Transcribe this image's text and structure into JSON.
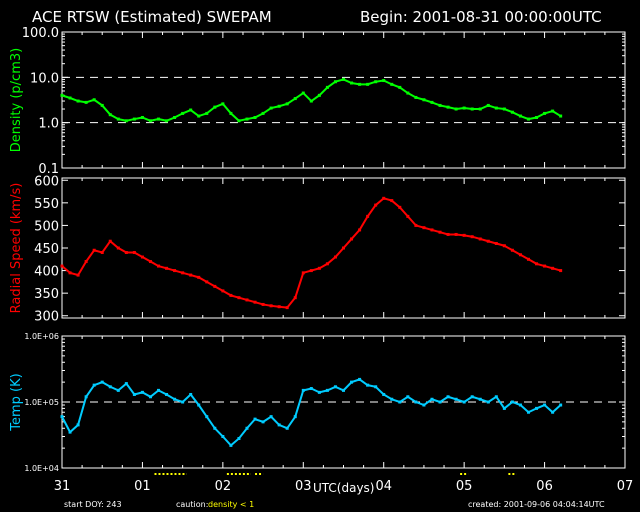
{
  "header": {
    "title": "ACE RTSW (Estimated) SWEPAM",
    "begin": "Begin: 2001-08-31 00:00:00UTC"
  },
  "footer": {
    "start_doy": "start DOY: 243",
    "caution_label": "caution:",
    "caution_value": "density < 1",
    "created": "created: 2001-09-06 04:04:14UTC",
    "xlabel": "UTC(days)"
  },
  "colors": {
    "density": "#00ff00",
    "speed": "#ff0000",
    "temp": "#00ccff",
    "caution": "#ffff00",
    "axes": "#ffffff"
  },
  "chart_data": [
    {
      "type": "scatter",
      "name": "density",
      "ylabel": "Density (p/cm3)",
      "yscale": "log",
      "ylim": [
        0.1,
        100
      ],
      "yticks": [
        0.1,
        1,
        10,
        100
      ],
      "ytick_labels": [
        "0.1",
        "1.0",
        "10.0",
        "100.0"
      ],
      "reference_lines": [
        1,
        10
      ],
      "xlim": [
        0,
        7
      ],
      "x": [
        0.0,
        0.1,
        0.2,
        0.3,
        0.4,
        0.5,
        0.6,
        0.7,
        0.8,
        0.9,
        1.0,
        1.1,
        1.2,
        1.3,
        1.4,
        1.5,
        1.6,
        1.7,
        1.8,
        1.9,
        2.0,
        2.1,
        2.2,
        2.3,
        2.4,
        2.5,
        2.6,
        2.7,
        2.8,
        2.9,
        3.0,
        3.1,
        3.2,
        3.3,
        3.4,
        3.5,
        3.6,
        3.7,
        3.8,
        3.9,
        4.0,
        4.1,
        4.2,
        4.3,
        4.4,
        4.5,
        4.6,
        4.7,
        4.8,
        4.9,
        5.0,
        5.1,
        5.2,
        5.3,
        5.4,
        5.5,
        5.6,
        5.7,
        5.8,
        5.9,
        6.0,
        6.1,
        6.2
      ],
      "y": [
        4,
        3.5,
        3,
        2.8,
        3.2,
        2.4,
        1.5,
        1.2,
        1.1,
        1.2,
        1.3,
        1.1,
        1.2,
        1.1,
        1.3,
        1.6,
        1.9,
        1.4,
        1.6,
        2.2,
        2.6,
        1.6,
        1.1,
        1.2,
        1.3,
        1.6,
        2.1,
        2.3,
        2.6,
        3.4,
        4.5,
        3,
        4,
        6,
        8,
        9,
        7.5,
        7,
        7,
        8,
        8.5,
        7,
        6,
        4.5,
        3.6,
        3.2,
        2.8,
        2.4,
        2.2,
        2,
        2.1,
        2,
        2,
        2.4,
        2.1,
        2,
        1.7,
        1.4,
        1.2,
        1.3,
        1.6,
        1.8,
        1.4
      ]
    },
    {
      "type": "scatter",
      "name": "radial_speed",
      "ylabel": "Radial Speed (km/s)",
      "ylim": [
        295,
        605
      ],
      "yticks": [
        300,
        350,
        400,
        450,
        500,
        550,
        600
      ],
      "ytick_labels": [
        "300",
        "350",
        "400",
        "450",
        "500",
        "550",
        "600"
      ],
      "xlim": [
        0,
        7
      ],
      "x": [
        0.0,
        0.1,
        0.2,
        0.3,
        0.4,
        0.5,
        0.6,
        0.7,
        0.8,
        0.9,
        1.0,
        1.1,
        1.2,
        1.3,
        1.4,
        1.5,
        1.6,
        1.7,
        1.8,
        1.9,
        2.0,
        2.1,
        2.2,
        2.3,
        2.4,
        2.5,
        2.6,
        2.7,
        2.8,
        2.9,
        3.0,
        3.1,
        3.2,
        3.3,
        3.4,
        3.5,
        3.6,
        3.7,
        3.8,
        3.9,
        4.0,
        4.1,
        4.2,
        4.3,
        4.4,
        4.5,
        4.6,
        4.7,
        4.8,
        4.9,
        5.0,
        5.1,
        5.2,
        5.3,
        5.4,
        5.5,
        5.6,
        5.7,
        5.8,
        5.9,
        6.0,
        6.1,
        6.2
      ],
      "y": [
        410,
        395,
        390,
        420,
        445,
        440,
        465,
        450,
        440,
        440,
        430,
        420,
        410,
        405,
        400,
        395,
        390,
        385,
        375,
        365,
        355,
        345,
        340,
        335,
        330,
        325,
        322,
        320,
        318,
        340,
        395,
        400,
        405,
        415,
        430,
        450,
        470,
        490,
        520,
        545,
        560,
        555,
        540,
        520,
        500,
        495,
        490,
        485,
        480,
        480,
        478,
        475,
        470,
        465,
        460,
        455,
        445,
        435,
        425,
        415,
        410,
        405,
        400
      ]
    },
    {
      "type": "scatter",
      "name": "temp",
      "ylabel": "Temp (K)",
      "yscale": "log",
      "ylim": [
        10000,
        1000000
      ],
      "yticks": [
        10000,
        100000,
        1000000
      ],
      "ytick_labels": [
        "1.0E+04",
        "1.0E+05",
        "1.0E+06"
      ],
      "reference_lines": [
        100000
      ],
      "xlim": [
        0,
        7
      ],
      "x": [
        0.0,
        0.1,
        0.2,
        0.3,
        0.4,
        0.5,
        0.6,
        0.7,
        0.8,
        0.9,
        1.0,
        1.1,
        1.2,
        1.3,
        1.4,
        1.5,
        1.6,
        1.7,
        1.8,
        1.9,
        2.0,
        2.1,
        2.2,
        2.3,
        2.4,
        2.5,
        2.6,
        2.7,
        2.8,
        2.9,
        3.0,
        3.1,
        3.2,
        3.3,
        3.4,
        3.5,
        3.6,
        3.7,
        3.8,
        3.9,
        4.0,
        4.1,
        4.2,
        4.3,
        4.4,
        4.5,
        4.6,
        4.7,
        4.8,
        4.9,
        5.0,
        5.1,
        5.2,
        5.3,
        5.4,
        5.5,
        5.6,
        5.7,
        5.8,
        5.9,
        6.0,
        6.1,
        6.2
      ],
      "y": [
        60000,
        35000,
        45000,
        120000,
        180000,
        200000,
        170000,
        150000,
        190000,
        130000,
        140000,
        120000,
        150000,
        130000,
        110000,
        100000,
        130000,
        90000,
        60000,
        40000,
        30000,
        22000,
        28000,
        40000,
        55000,
        50000,
        60000,
        45000,
        40000,
        60000,
        150000,
        160000,
        140000,
        150000,
        170000,
        150000,
        200000,
        220000,
        180000,
        170000,
        130000,
        110000,
        100000,
        120000,
        100000,
        90000,
        110000,
        100000,
        120000,
        110000,
        100000,
        120000,
        110000,
        100000,
        120000,
        80000,
        100000,
        90000,
        70000,
        80000,
        90000,
        70000,
        90000
      ]
    }
  ],
  "x_ticks": {
    "positions": [
      0,
      1,
      2,
      3,
      4,
      5,
      6,
      7
    ],
    "labels": [
      "31",
      "01",
      "02",
      "03",
      "04",
      "05",
      "06",
      "07"
    ]
  },
  "caution_marks": [
    [
      1.15,
      1.55
    ],
    [
      2.05,
      2.35
    ],
    [
      2.4,
      2.5
    ],
    [
      4.95,
      5.05
    ],
    [
      5.55,
      5.65
    ]
  ]
}
